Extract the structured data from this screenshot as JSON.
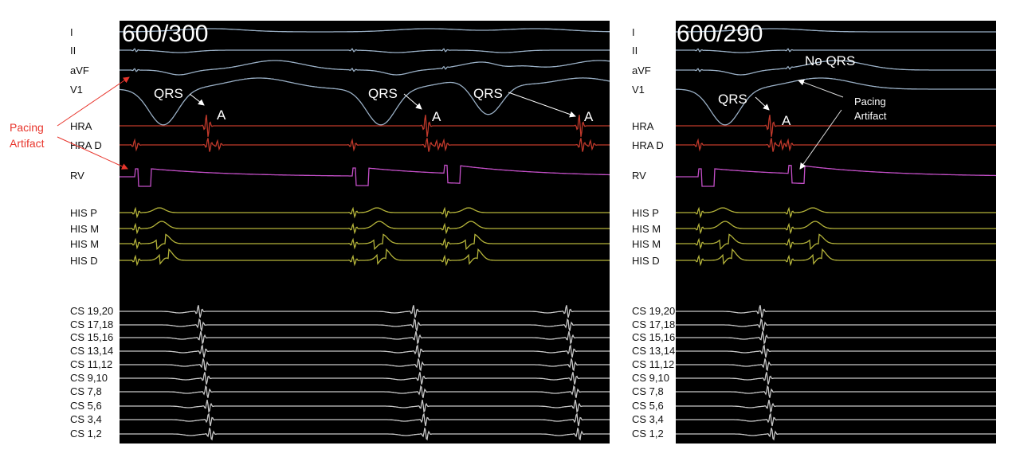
{
  "colors": {
    "background": "#000000",
    "surface": "#9ab0c6",
    "hra": "#c0392b",
    "rv": "#c44fc8",
    "his": "#b5b43a",
    "cs": "#c8c8c8",
    "annotation_red": "#e8352c",
    "annotation_white": "#ffffff"
  },
  "left_panel": {
    "cycle_label": "600/300",
    "annotations": {
      "qrs1": "QRS",
      "a1": "A",
      "qrs2": "QRS",
      "a2": "A",
      "qrs3": "QRS",
      "a3": "A"
    },
    "side_note_line1": "Pacing",
    "side_note_line2": "Artifact"
  },
  "right_panel": {
    "cycle_label": "600/290",
    "annotations": {
      "qrs1": "QRS",
      "a1": "A",
      "no_qrs": "No QRS",
      "pacing_line1": "Pacing",
      "pacing_line2": "Artifact"
    }
  },
  "channels": [
    "I",
    "II",
    "aVF",
    "V1",
    "HRA",
    "HRA D",
    "RV",
    "HIS P",
    "HIS M",
    "HIS M",
    "HIS D",
    "CS 19,20",
    "CS 17,18",
    "CS 15,16",
    "CS 13,14",
    "CS 11,12",
    "CS 9,10",
    "CS 7,8",
    "CS 5,6",
    "CS 3,4",
    "CS 1,2"
  ]
}
